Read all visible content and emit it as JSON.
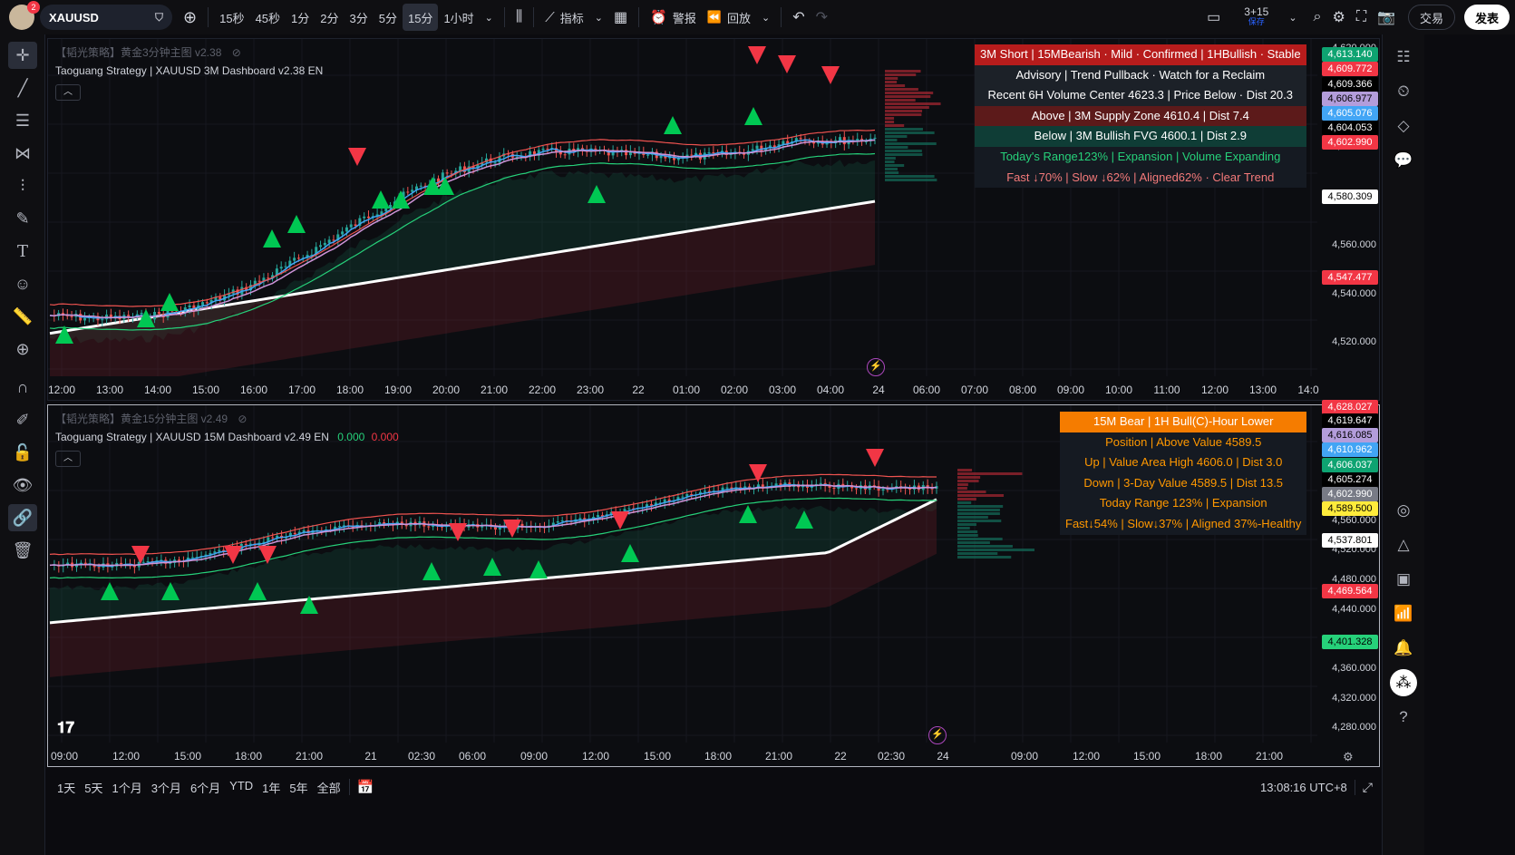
{
  "topbar": {
    "avatar_badge": "2",
    "symbol": "XAUUSD",
    "intervals": [
      "15秒",
      "45秒",
      "1分",
      "2分",
      "3分",
      "5分",
      "15分",
      "1小时"
    ],
    "active_interval": "15分",
    "indicators_label": "指标",
    "alerts_label": "警报",
    "replay_label": "回放",
    "layout_count": "3+15",
    "layout_status": "保存",
    "trade_label": "交易",
    "publish_label": "发表"
  },
  "pane1": {
    "title_cn": "【韬光策略】黄金3分钟主图 v2.38",
    "title_en": "Taoguang Strategy | XAUUSD 3M Dashboard v2.38 EN",
    "dashboard": [
      {
        "text": "3M Short | 15MBearish · Mild · Confirmed | 1HBullish · Stable",
        "bg": "#b71c1c",
        "color": "#ffffff"
      },
      {
        "text": "Advisory | Trend Pullback · Watch for a Reclaim",
        "bg": "#1c2128",
        "color": "#ffffff"
      },
      {
        "text": "Recent 6H Volume Center 4623.3 | Price Below · Dist 20.3",
        "bg": "#1c2128",
        "color": "#ffffff"
      },
      {
        "text": "Above | 3M Supply Zone 4610.4 | Dist 7.4",
        "bg": "#5c1a1a",
        "color": "#ffffff"
      },
      {
        "text": "Below | 3M Bullish FVG 4600.1 | Dist 2.9",
        "bg": "#0f3d36",
        "color": "#ffffff"
      },
      {
        "text": "Today's Range123% | Expansion | Volume Expanding",
        "bg": "#151a22",
        "color": "#26d17a"
      },
      {
        "text": "Fast ↓70% | Slow ↓62% | Aligned62% · Clear Trend",
        "bg": "#151a22",
        "color": "#f57a7a"
      }
    ],
    "price_labels": [
      "4,620.000",
      "4,600.000",
      "4,580.000",
      "4,560.000",
      "4,540.000",
      "4,520.000"
    ],
    "price_tags": [
      {
        "text": "4,613.140",
        "bg": "#0ea371",
        "color": "#ffffff"
      },
      {
        "text": "4,609.772",
        "bg": "#f23645",
        "color": "#ffffff"
      },
      {
        "text": "4,609.366",
        "bg": "#000000",
        "color": "#ffffff"
      },
      {
        "text": "4,606.977",
        "bg": "#b39ddb",
        "color": "#000000"
      },
      {
        "text": "4,605.076",
        "bg": "#42a5f5",
        "color": "#ffffff"
      },
      {
        "text": "4,604.053",
        "bg": "#000000",
        "color": "#ffffff"
      },
      {
        "text": "4,602.990",
        "bg": "#f23645",
        "color": "#ffffff"
      },
      {
        "text": "4,580.309",
        "bg": "#ffffff",
        "color": "#000000"
      },
      {
        "text": "4,547.477",
        "bg": "#f23645",
        "color": "#ffffff"
      }
    ],
    "time_labels": [
      "12:00",
      "13:00",
      "14:00",
      "15:00",
      "16:00",
      "17:00",
      "18:00",
      "19:00",
      "20:00",
      "21:00",
      "22:00",
      "23:00",
      "22",
      "01:00",
      "02:00",
      "03:00",
      "04:00",
      "24",
      "06:00",
      "07:00",
      "08:00",
      "09:00",
      "10:00",
      "11:00",
      "12:00",
      "13:00",
      "14:0"
    ]
  },
  "pane2": {
    "title_cn": "【韬光策略】黄金15分钟主图 v2.49",
    "title_en": "Taoguang Strategy | XAUUSD 15M Dashboard v2.49 EN",
    "value_green": "0.000",
    "value_red": "0.000",
    "dashboard": [
      {
        "text": "15M Bear | 1H Bull(C)-Hour Lower",
        "bg": "#f57c00",
        "color": "#ffffff"
      },
      {
        "text": "Position | Above Value 4589.5",
        "bg": "#151a22",
        "color": "#ff9800"
      },
      {
        "text": "Up | Value Area High 4606.0 | Dist 3.0",
        "bg": "#151a22",
        "color": "#ff9800"
      },
      {
        "text": "Down | 3-Day Value 4589.5 | Dist 13.5",
        "bg": "#151a22",
        "color": "#ff9800"
      },
      {
        "text": "Today Range 123% | Expansion",
        "bg": "#151a22",
        "color": "#ff9800"
      },
      {
        "text": "Fast↓54% | Slow↓37% | Aligned 37%-Healthy",
        "bg": "#151a22",
        "color": "#ff9800"
      }
    ],
    "price_labels": [
      "4,560.000",
      "4,520.000",
      "4,480.000",
      "4,440.000",
      "4,360.000",
      "4,320.000",
      "4,280.000"
    ],
    "price_tags": [
      {
        "text": "4,628.027",
        "bg": "#f23645",
        "color": "#ffffff"
      },
      {
        "text": "4,619.647",
        "bg": "#000000",
        "color": "#ffffff"
      },
      {
        "text": "4,616.085",
        "bg": "#b39ddb",
        "color": "#000000"
      },
      {
        "text": "4,610.962",
        "bg": "#42a5f5",
        "color": "#ffffff"
      },
      {
        "text": "4,606.037",
        "bg": "#0ea371",
        "color": "#ffffff"
      },
      {
        "text": "4,605.274",
        "bg": "#000000",
        "color": "#ffffff"
      },
      {
        "text": "4,602.990",
        "bg": "#787b86",
        "color": "#ffffff"
      },
      {
        "text": "4,589.500",
        "bg": "#ffeb3b",
        "color": "#000000"
      },
      {
        "text": "4,537.801",
        "bg": "#ffffff",
        "color": "#000000"
      },
      {
        "text": "4,469.564",
        "bg": "#f23645",
        "color": "#ffffff"
      },
      {
        "text": "4,401.328",
        "bg": "#26d17a",
        "color": "#000000"
      }
    ],
    "time_labels": [
      "09:00",
      "12:00",
      "15:00",
      "18:00",
      "21:00",
      "21",
      "02:30",
      "06:00",
      "09:00",
      "12:00",
      "15:00",
      "18:00",
      "21:00",
      "22",
      "02:30",
      "24",
      "09:00",
      "12:00",
      "15:00",
      "18:00",
      "21:00"
    ]
  },
  "bottombar": {
    "ranges": [
      "1天",
      "5天",
      "1个月",
      "3个月",
      "6个月",
      "YTD",
      "1年",
      "5年",
      "全部"
    ],
    "clock": "13:08:16 UTC+8"
  }
}
